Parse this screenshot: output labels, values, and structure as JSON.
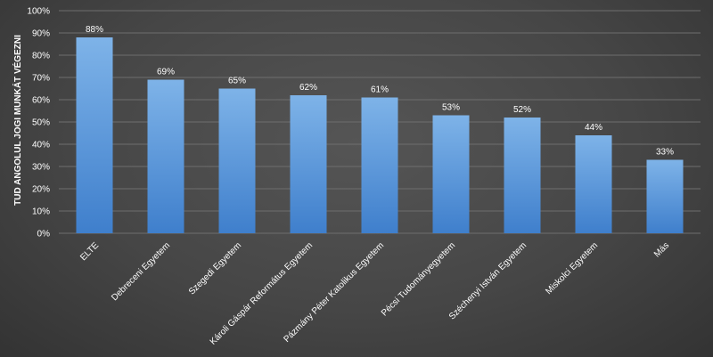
{
  "chart_data": {
    "type": "bar",
    "title": "",
    "xlabel": "",
    "ylabel": "TUD ANGOLUL  JOGI MUNKÁT VÉGEZNI",
    "ylim": [
      0,
      100
    ],
    "yticks": [
      "0%",
      "10%",
      "20%",
      "30%",
      "40%",
      "50%",
      "60%",
      "70%",
      "80%",
      "90%",
      "100%"
    ],
    "grid": true,
    "categories": [
      "ELTE",
      "Debreceni Egyetem",
      "Szegedi Egyetem",
      "Károli Gáspár Református Egyetem",
      "Pázmány Péter Katolikus Egyetem",
      "Pécsi Tudományegyetem",
      "Széchenyi István Egyetem",
      "Miskolci Egyetem",
      "Más"
    ],
    "values": [
      88,
      69,
      65,
      62,
      61,
      53,
      52,
      44,
      33
    ],
    "value_labels": [
      "88%",
      "69%",
      "65%",
      "62%",
      "61%",
      "53%",
      "52%",
      "44%",
      "33%"
    ],
    "colors": {
      "bar_top": "#7eb3e8",
      "bar_bottom": "#3f7fcc",
      "grid": "#6e6e6e",
      "text": "#ffffff"
    }
  }
}
